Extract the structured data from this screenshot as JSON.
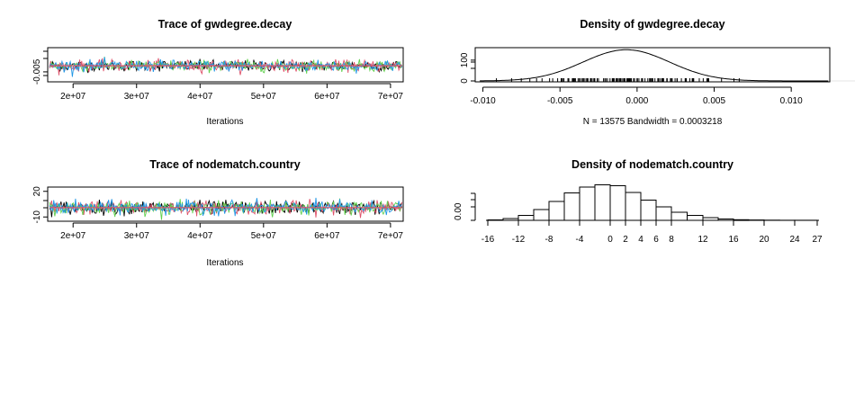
{
  "chart_data": [
    {
      "type": "line",
      "title": "Trace of gwdegree.decay",
      "xlabel": "Iterations",
      "ylabel": "",
      "xlim": [
        16000000,
        72000000
      ],
      "ylim": [
        -0.012,
        0.012
      ],
      "x_ticks": [
        20000000,
        30000000,
        40000000,
        50000000,
        60000000,
        70000000
      ],
      "x_tick_labels": [
        "2e+07",
        "3e+07",
        "4e+07",
        "5e+07",
        "6e+07",
        "7e+07"
      ],
      "y_ticks": [
        -0.005
      ],
      "y_tick_labels": [
        "-0.005"
      ],
      "series_colors": [
        "#000000",
        "#DF536B",
        "#61D04F",
        "#2297E6"
      ],
      "center": -0.0007,
      "spread": 0.0035,
      "mean_line_color": "#DF536B"
    },
    {
      "type": "line",
      "title": "Density of gwdegree.decay",
      "xlabel": "N = 13575   Bandwidth = 0.0003218",
      "ylabel": "",
      "xlim": [
        -0.0105,
        0.0125
      ],
      "ylim": [
        0,
        160
      ],
      "x_ticks": [
        -0.01,
        -0.005,
        0.0,
        0.005,
        0.01
      ],
      "x_tick_labels": [
        "-0.010",
        "-0.005",
        "0.000",
        "0.005",
        "0.010"
      ],
      "y_ticks": [
        0,
        100
      ],
      "y_tick_labels": [
        "0",
        "100"
      ],
      "density_mean": -0.0007,
      "density_sd": 0.0028,
      "density_peak": 150
    },
    {
      "type": "line",
      "title": "Trace of nodematch.country",
      "xlabel": "Iterations",
      "ylabel": "",
      "xlim": [
        16000000,
        72000000
      ],
      "ylim": [
        -15,
        25
      ],
      "x_ticks": [
        20000000,
        30000000,
        40000000,
        50000000,
        60000000,
        70000000
      ],
      "x_tick_labels": [
        "2e+07",
        "3e+07",
        "4e+07",
        "5e+07",
        "6e+07",
        "7e+07"
      ],
      "y_ticks": [
        -10,
        20
      ],
      "y_tick_labels": [
        "-10",
        "20"
      ],
      "series_colors": [
        "#000000",
        "#DF536B",
        "#61D04F",
        "#2297E6"
      ],
      "center": 1,
      "spread": 7,
      "mean_line_color": "#DF536B"
    },
    {
      "type": "bar",
      "title": "Density of nodematch.country",
      "xlabel": "",
      "ylabel": "",
      "bin_edges": [
        -16,
        -14,
        -12,
        -10,
        -8,
        -6,
        -4,
        -2,
        0,
        2,
        4,
        6,
        8,
        10,
        12,
        14,
        16,
        18,
        20,
        22,
        24,
        27
      ],
      "values": [
        0.001,
        0.004,
        0.011,
        0.024,
        0.042,
        0.061,
        0.074,
        0.079,
        0.077,
        0.062,
        0.045,
        0.03,
        0.018,
        0.011,
        0.006,
        0.003,
        0.0015,
        0.0008,
        0.0004,
        0.0002,
        0.0001
      ],
      "x_tick_labels": [
        "-16",
        "-12",
        "-8",
        "-4",
        "0",
        "2",
        "4",
        "6",
        "8",
        "12",
        "16",
        "20",
        "24",
        "27"
      ],
      "x_ticks": [
        -16,
        -12,
        -8,
        -4,
        0,
        2,
        4,
        6,
        8,
        12,
        16,
        20,
        24,
        27
      ],
      "y_ticks": [
        0.0
      ],
      "y_tick_labels": [
        "0.00"
      ],
      "ylim": [
        0,
        0.09
      ]
    }
  ]
}
